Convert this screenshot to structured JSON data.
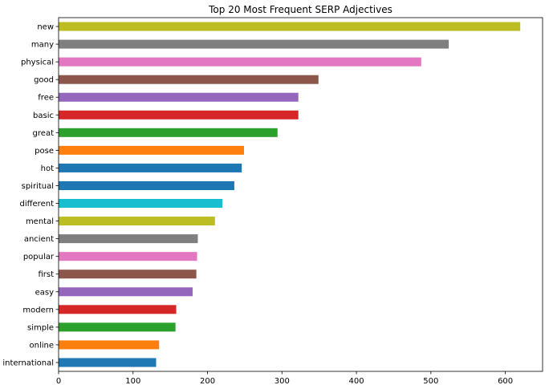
{
  "chart_data": {
    "type": "bar",
    "orientation": "horizontal",
    "title": "Top 20 Most Frequent SERP Adjectives",
    "xlabel": "",
    "ylabel": "",
    "xlim": [
      0,
      650
    ],
    "xticks": [
      0,
      100,
      200,
      300,
      400,
      500,
      600
    ],
    "grid": false,
    "categories": [
      "new",
      "many",
      "physical",
      "good",
      "free",
      "basic",
      "great",
      "pose",
      "hot",
      "spiritual",
      "different",
      "mental",
      "ancient",
      "popular",
      "first",
      "easy",
      "modern",
      "simple",
      "online",
      "international"
    ],
    "values": [
      620,
      524,
      487,
      349,
      322,
      322,
      294,
      249,
      246,
      236,
      220,
      210,
      187,
      186,
      185,
      180,
      158,
      157,
      135,
      131
    ],
    "colors": [
      "#bcbd22",
      "#7f7f7f",
      "#e377c2",
      "#8c564b",
      "#9467bd",
      "#d62728",
      "#2ca02c",
      "#ff7f0e",
      "#1f77b4",
      "#1f77b4",
      "#17becf",
      "#bcbd22",
      "#7f7f7f",
      "#e377c2",
      "#8c564b",
      "#9467bd",
      "#d62728",
      "#2ca02c",
      "#ff7f0e",
      "#1f77b4"
    ]
  }
}
